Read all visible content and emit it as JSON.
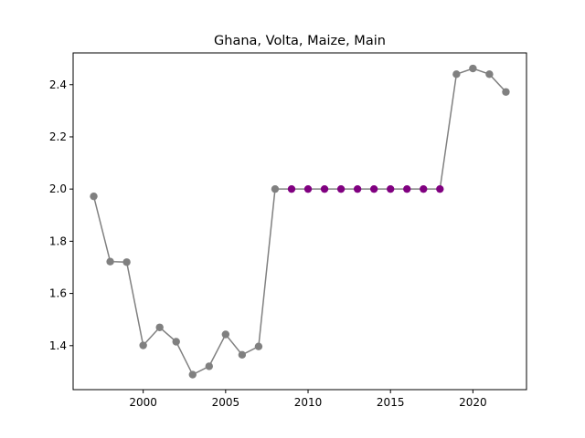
{
  "chart_data": {
    "type": "line",
    "title": "Ghana, Volta, Maize, Main",
    "xlabel": "",
    "ylabel": "",
    "xlim": [
      1995.75,
      2023.25
    ],
    "ylim": [
      1.2315,
      2.5215
    ],
    "xticks": [
      2000,
      2005,
      2010,
      2015,
      2020
    ],
    "xtick_labels": [
      "2000",
      "2005",
      "2010",
      "2015",
      "2020"
    ],
    "yticks": [
      1.4,
      1.6,
      1.8,
      2.0,
      2.2,
      2.4
    ],
    "ytick_labels": [
      "1.4",
      "1.6",
      "1.8",
      "2.0",
      "2.2",
      "2.4"
    ],
    "grid": false,
    "line_color": "#808080",
    "series": [
      {
        "name": "Main",
        "x": [
          1997,
          1998,
          1999,
          2000,
          2001,
          2002,
          2003,
          2004,
          2005,
          2006,
          2007,
          2008,
          2009,
          2010,
          2011,
          2012,
          2013,
          2014,
          2015,
          2016,
          2017,
          2018,
          2019,
          2020,
          2021,
          2022
        ],
        "values": [
          1.972,
          1.722,
          1.72,
          1.401,
          1.47,
          1.415,
          1.289,
          1.321,
          1.443,
          1.365,
          1.397,
          2.0,
          2.0,
          2.0,
          2.0,
          2.0,
          2.0,
          2.0,
          2.0,
          2.0,
          2.0,
          2.0,
          2.44,
          2.462,
          2.44,
          2.372
        ],
        "marker_colors": [
          "#808080",
          "#808080",
          "#808080",
          "#808080",
          "#808080",
          "#808080",
          "#808080",
          "#808080",
          "#808080",
          "#808080",
          "#808080",
          "#808080",
          "#800080",
          "#800080",
          "#800080",
          "#800080",
          "#800080",
          "#800080",
          "#800080",
          "#800080",
          "#800080",
          "#800080",
          "#808080",
          "#808080",
          "#808080",
          "#808080"
        ]
      }
    ]
  }
}
